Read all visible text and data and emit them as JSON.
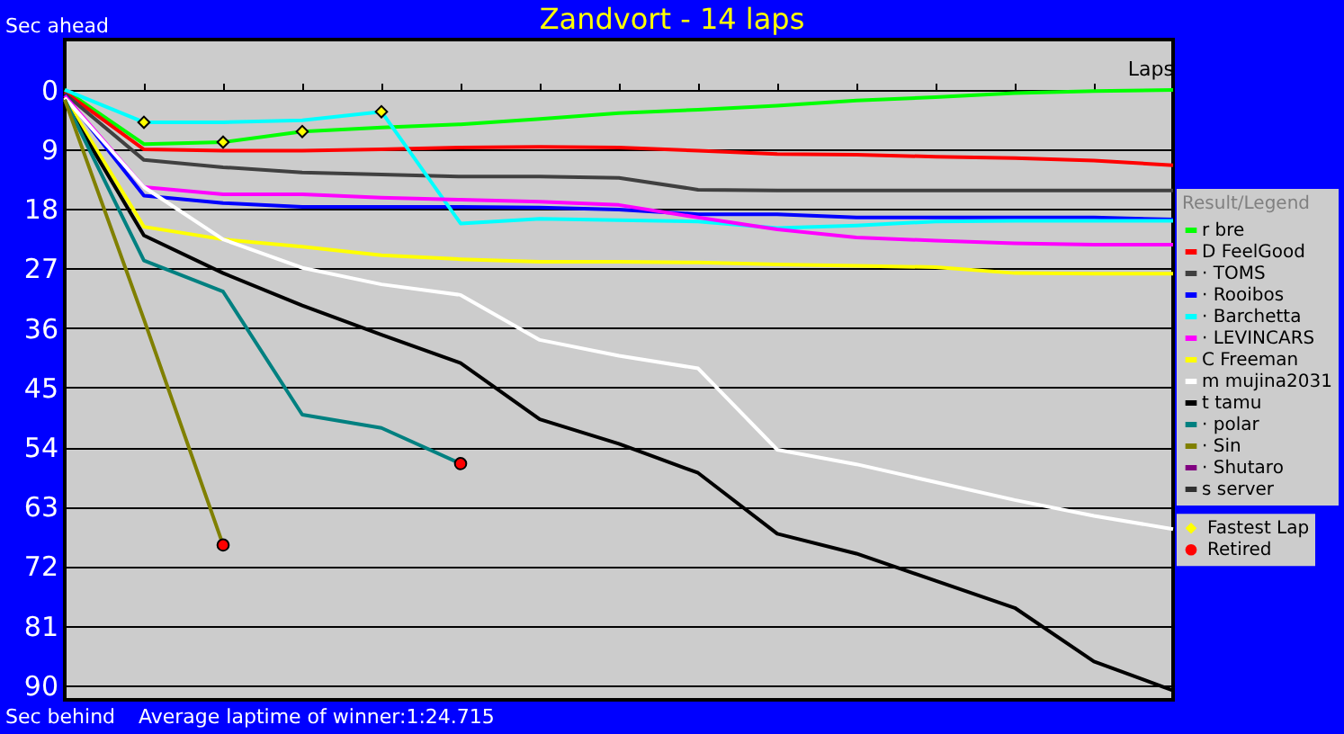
{
  "chart_data": {
    "type": "line",
    "title": "Zandvort - 14 laps",
    "xlabel": "Laps",
    "legend_title": "Result/Legend",
    "annotations": [
      "Sec ahead",
      "Sec behind",
      "Average laptime of winner:1:24.715"
    ],
    "categories": [
      null,
      null,
      null,
      null,
      null,
      null,
      null,
      null,
      null,
      null,
      null,
      null,
      null,
      null,
      null
    ],
    "ylim": [
      92.2,
      -7.6
    ],
    "yticks": [
      0,
      9,
      18,
      27,
      36,
      45,
      54,
      63,
      72,
      81,
      90
    ],
    "grid": "y",
    "legend": "right",
    "tick_labels": "y",
    "series": [
      {
        "name": "r bre",
        "color": "#00ff00",
        "values": [
          0,
          8.2,
          7.9,
          6.3,
          5.7,
          5.2,
          4.4,
          3.5,
          3.0,
          2.4,
          1.6,
          1.1,
          0.5,
          0.2,
          0
        ]
      },
      {
        "name": "D FeelGood",
        "color": "#ff0000",
        "values": [
          0.3,
          9.0,
          9.2,
          9.2,
          9.0,
          8.7,
          8.6,
          8.7,
          9.2,
          9.7,
          9.8,
          10.1,
          10.3,
          10.7,
          11.4
        ]
      },
      {
        "name": "· TOMS",
        "color": "#404040",
        "values": [
          0.6,
          10.6,
          11.7,
          12.5,
          12.8,
          13.1,
          13.1,
          13.3,
          15.1,
          15.2,
          15.2,
          15.2,
          15.2,
          15.2,
          15.2
        ]
      },
      {
        "name": "· Rooibos",
        "color": "#0000ff",
        "values": [
          0.8,
          16.0,
          17.1,
          17.7,
          17.7,
          17.7,
          17.8,
          18.1,
          18.8,
          18.8,
          19.3,
          19.3,
          19.3,
          19.3,
          19.6
        ]
      },
      {
        "name": "· Barchetta",
        "color": "#00ffff",
        "values": [
          0,
          4.9,
          4.9,
          4.6,
          3.3,
          20.2,
          19.5,
          19.7,
          19.9,
          20.9,
          20.5,
          19.9,
          19.8,
          19.8,
          19.8
        ]
      },
      {
        "name": "· LEVINCARS",
        "color": "#ff00ff",
        "values": [
          0.9,
          14.7,
          15.8,
          15.8,
          16.3,
          16.6,
          16.9,
          17.4,
          19.3,
          21.1,
          22.3,
          22.8,
          23.2,
          23.4,
          23.4
        ]
      },
      {
        "name": "C Freeman",
        "color": "#ffff00",
        "values": [
          1.2,
          20.7,
          22.6,
          23.7,
          25.0,
          25.6,
          26.0,
          26.0,
          26.1,
          26.4,
          26.6,
          26.8,
          27.7,
          27.8,
          27.8
        ]
      },
      {
        "name": "m mujina2031",
        "color": "#ffffff",
        "values": [
          1.2,
          14.7,
          22.6,
          26.9,
          29.4,
          31.0,
          37.8,
          40.2,
          42.1,
          54.4,
          56.6,
          59.3,
          62.0,
          64.4,
          66.4
        ]
      },
      {
        "name": "t tamu",
        "color": "#000000",
        "values": [
          1.9,
          22.0,
          27.7,
          32.6,
          37.0,
          41.3,
          49.8,
          53.5,
          57.9,
          67.1,
          70.1,
          74.2,
          78.3,
          86.4,
          90.8
        ]
      },
      {
        "name": "· polar",
        "color": "#008080",
        "values": [
          1.5,
          25.8,
          30.5,
          49.1,
          51.1,
          56.5,
          null,
          null,
          null,
          null,
          null,
          null,
          null,
          null,
          null
        ]
      },
      {
        "name": "· Sin",
        "color": "#808000",
        "values": [
          1.5,
          34.7,
          68.8,
          null,
          null,
          null,
          null,
          null,
          null,
          null,
          null,
          null,
          null,
          null,
          null
        ]
      },
      {
        "name": "· Shutaro",
        "color": "#800080",
        "values": [
          null,
          null,
          null,
          null,
          null,
          null,
          null,
          null,
          null,
          null,
          null,
          null,
          null,
          null,
          null
        ]
      },
      {
        "name": "s server",
        "color": "#303030",
        "values": [
          null,
          null,
          null,
          null,
          null,
          null,
          null,
          null,
          null,
          null,
          null,
          null,
          null,
          null,
          null
        ]
      },
      {
        "name": "Fastest Lap",
        "type": "scatter",
        "marker": "diamond",
        "color": "#ffff00",
        "values": [
          null,
          4.9,
          7.9,
          6.3,
          3.3,
          null,
          null,
          null,
          null,
          null,
          null,
          null,
          null,
          null,
          null
        ]
      },
      {
        "name": "Retired",
        "type": "scatter",
        "marker": "circle",
        "color": "#ff0000",
        "values": [
          null,
          null,
          68.8,
          null,
          null,
          56.5,
          null,
          null,
          null,
          null,
          null,
          null,
          null,
          null,
          null
        ]
      }
    ]
  }
}
